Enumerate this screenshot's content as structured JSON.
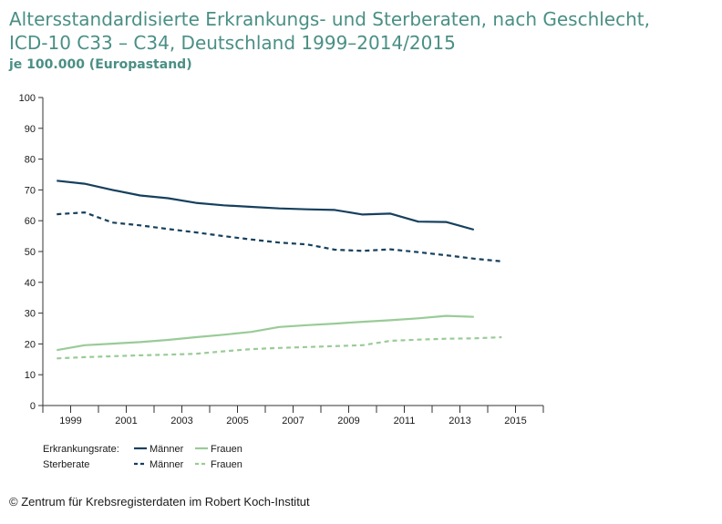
{
  "chart_data": {
    "type": "line",
    "title_line1": "Altersstandardisierte Erkrankungs- und Sterberaten, nach Geschlecht,",
    "title_line2": "ICD-10 C33 – C34, Deutschland 1999–2014/2015",
    "subtitle": "je 100.000 (Europastand)",
    "xlabel": "",
    "ylabel": "",
    "ylim": [
      0,
      100
    ],
    "yticks": [
      0,
      10,
      20,
      30,
      40,
      50,
      60,
      70,
      80,
      90,
      100
    ],
    "xlim": [
      1998,
      2016
    ],
    "xtick_labels": [
      {
        "year": 1999,
        "label": "1999"
      },
      {
        "year": 2001,
        "label": "2001"
      },
      {
        "year": 2003,
        "label": "2003"
      },
      {
        "year": 2005,
        "label": "2005"
      },
      {
        "year": 2007,
        "label": "2007"
      },
      {
        "year": 2009,
        "label": "2009"
      },
      {
        "year": 2011,
        "label": "2011"
      },
      {
        "year": 2013,
        "label": "2013"
      },
      {
        "year": 2015,
        "label": "2015"
      }
    ],
    "series": [
      {
        "name": "Erkrankungsrate Männer",
        "color": "#16405e",
        "dash": "solid",
        "x": [
          1998.5,
          1999.5,
          2000.5,
          2001.5,
          2002.5,
          2003.5,
          2004.5,
          2005.5,
          2006.5,
          2007.5,
          2008.5,
          2009.5,
          2010.5,
          2011.5,
          2012.5,
          2013.5
        ],
        "y": [
          73.0,
          72.0,
          70.0,
          68.2,
          67.3,
          65.8,
          65.0,
          64.5,
          64.0,
          63.7,
          63.5,
          62.0,
          62.3,
          59.7,
          59.6,
          57.1
        ]
      },
      {
        "name": "Sterberate Männer",
        "color": "#16405e",
        "dash": "dashed",
        "x": [
          1998.5,
          1999.5,
          2000.5,
          2001.5,
          2002.5,
          2003.5,
          2004.5,
          2005.5,
          2006.5,
          2007.5,
          2008.5,
          2009.5,
          2010.5,
          2011.5,
          2012.5,
          2013.5,
          2014.5
        ],
        "y": [
          62.1,
          62.7,
          59.4,
          58.5,
          57.3,
          56.2,
          55.0,
          53.9,
          52.9,
          52.3,
          50.6,
          50.2,
          50.7,
          49.8,
          48.8,
          47.7,
          46.8
        ]
      },
      {
        "name": "Erkrankungsrate Frauen",
        "color": "#9acb98",
        "dash": "solid",
        "x": [
          1998.5,
          1999.5,
          2000.5,
          2001.5,
          2002.5,
          2003.5,
          2004.5,
          2005.5,
          2006.5,
          2007.5,
          2008.5,
          2009.5,
          2010.5,
          2011.5,
          2012.5,
          2013.5
        ],
        "y": [
          18.0,
          19.6,
          20.1,
          20.6,
          21.3,
          22.2,
          23.0,
          23.9,
          25.5,
          26.1,
          26.6,
          27.2,
          27.7,
          28.3,
          29.1,
          28.8
        ]
      },
      {
        "name": "Sterberate Frauen",
        "color": "#9acb98",
        "dash": "dashed",
        "x": [
          1998.5,
          1999.5,
          2000.5,
          2001.5,
          2002.5,
          2003.5,
          2004.5,
          2005.5,
          2006.5,
          2007.5,
          2008.5,
          2009.5,
          2010.5,
          2011.5,
          2012.5,
          2013.5,
          2014.5
        ],
        "y": [
          15.3,
          15.7,
          16.0,
          16.3,
          16.5,
          16.8,
          17.6,
          18.3,
          18.7,
          19.0,
          19.3,
          19.6,
          21.0,
          21.4,
          21.7,
          21.8,
          22.2
        ]
      }
    ],
    "legend": {
      "row1_label": "Erkrankungsrate:",
      "row2_label": "Sterberate",
      "men": "Männer",
      "women": "Frauen",
      "color_men": "#16405e",
      "color_women": "#9acb98"
    },
    "grid": false
  },
  "footer": "© Zentrum für Krebsregisterdaten im Robert Koch-Institut"
}
